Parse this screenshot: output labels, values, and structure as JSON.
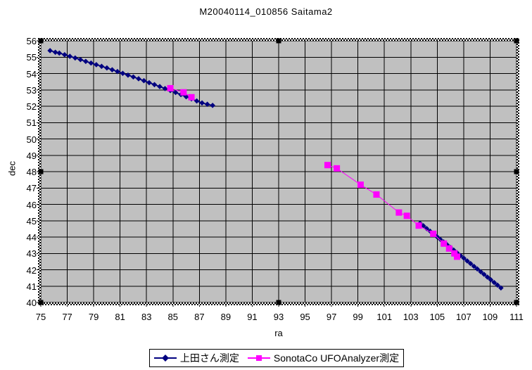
{
  "window": {
    "background": "#FFFFFF"
  },
  "chart_data": {
    "type": "scatter",
    "title": "M20040114_010856 Saitama2",
    "xlabel": "ra",
    "ylabel": "dec",
    "xlim": [
      75,
      111
    ],
    "ylim": [
      40,
      56
    ],
    "x_ticks": [
      75,
      77,
      79,
      81,
      83,
      85,
      87,
      89,
      91,
      93,
      95,
      97,
      99,
      101,
      103,
      105,
      107,
      109,
      111
    ],
    "y_ticks": [
      40,
      41,
      42,
      43,
      44,
      45,
      46,
      47,
      48,
      49,
      50,
      51,
      52,
      53,
      54,
      55,
      56
    ],
    "grid": true,
    "plot_background": "#C0C0C0",
    "grid_color": "#000000",
    "legend_position": "bottom",
    "selection": {
      "selected_object": "plot-area",
      "handle_color": "#000000"
    },
    "series": [
      {
        "name": "上田さん測定",
        "color": "#000080",
        "marker": "diamond",
        "line": true,
        "segments": [
          [
            [
              75.7,
              55.4
            ],
            [
              76.1,
              55.3
            ],
            [
              76.4,
              55.25
            ],
            [
              76.8,
              55.15
            ],
            [
              77.2,
              55.05
            ],
            [
              77.6,
              54.95
            ],
            [
              78.0,
              54.85
            ],
            [
              78.4,
              54.74
            ],
            [
              78.8,
              54.64
            ],
            [
              79.2,
              54.54
            ],
            [
              79.6,
              54.44
            ],
            [
              80.0,
              54.34
            ],
            [
              80.4,
              54.23
            ],
            [
              80.8,
              54.12
            ],
            [
              81.2,
              54.01
            ],
            [
              81.6,
              53.9
            ],
            [
              82.0,
              53.79
            ],
            [
              82.4,
              53.68
            ],
            [
              82.8,
              53.56
            ],
            [
              83.2,
              53.44
            ],
            [
              83.6,
              53.32
            ],
            [
              84.0,
              53.2
            ],
            [
              84.4,
              53.08
            ],
            [
              84.8,
              52.96
            ],
            [
              85.2,
              52.84
            ],
            [
              85.6,
              52.71
            ],
            [
              86.0,
              52.58
            ],
            [
              86.4,
              52.45
            ],
            [
              86.8,
              52.32
            ],
            [
              87.2,
              52.2
            ],
            [
              87.6,
              52.12
            ],
            [
              88.0,
              52.05
            ]
          ],
          [
            [
              103.7,
              44.85
            ],
            [
              103.95,
              44.69
            ],
            [
              104.2,
              44.52
            ],
            [
              104.46,
              44.36
            ],
            [
              104.72,
              44.19
            ],
            [
              104.97,
              44.03
            ],
            [
              105.23,
              43.86
            ],
            [
              105.48,
              43.7
            ],
            [
              105.74,
              43.53
            ],
            [
              105.99,
              43.37
            ],
            [
              106.25,
              43.2
            ],
            [
              106.5,
              43.04
            ],
            [
              106.76,
              42.87
            ],
            [
              107.01,
              42.71
            ],
            [
              107.27,
              42.54
            ],
            [
              107.52,
              42.38
            ],
            [
              107.78,
              42.21
            ],
            [
              108.03,
              42.05
            ],
            [
              108.29,
              41.88
            ],
            [
              108.54,
              41.72
            ],
            [
              108.8,
              41.55
            ],
            [
              109.05,
              41.39
            ],
            [
              109.31,
              41.22
            ],
            [
              109.56,
              41.06
            ],
            [
              109.82,
              40.89
            ]
          ]
        ]
      },
      {
        "name": "SonotaCo UFOAnalyzer測定",
        "color": "#FF00FF",
        "marker": "square",
        "line": true,
        "segments": [
          [
            [
              84.8,
              53.1
            ],
            [
              85.8,
              52.85
            ],
            [
              86.4,
              52.55
            ]
          ],
          [
            [
              96.7,
              48.4
            ],
            [
              97.4,
              48.2
            ],
            [
              99.2,
              47.2
            ],
            [
              100.4,
              46.6
            ],
            [
              102.1,
              45.5
            ],
            [
              102.7,
              45.3
            ],
            [
              103.6,
              44.7
            ],
            [
              104.7,
              44.2
            ],
            [
              105.5,
              43.6
            ],
            [
              105.9,
              43.3
            ],
            [
              106.3,
              43.0
            ],
            [
              106.5,
              42.8
            ]
          ]
        ]
      }
    ]
  }
}
